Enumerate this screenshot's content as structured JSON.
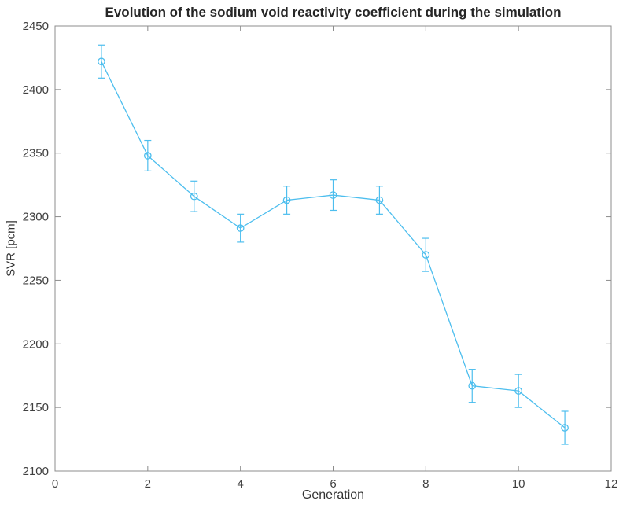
{
  "chart_data": {
    "type": "line",
    "title": "Evolution of the sodium void reactivity coefficient during the simulation",
    "xlabel": "Generation",
    "ylabel": "SVR [pcm]",
    "x": [
      1,
      2,
      3,
      4,
      5,
      6,
      7,
      8,
      9,
      10,
      11
    ],
    "y": [
      2422,
      2348,
      2316,
      2291,
      2313,
      2317,
      2313,
      2270,
      2167,
      2163,
      2134
    ],
    "yerr": [
      13,
      12,
      12,
      11,
      11,
      12,
      11,
      13,
      13,
      13,
      13
    ],
    "xlim": [
      0,
      12
    ],
    "ylim": [
      2100,
      2450
    ],
    "xticks": [
      0,
      2,
      4,
      6,
      8,
      10,
      12
    ],
    "yticks": [
      2100,
      2150,
      2200,
      2250,
      2300,
      2350,
      2400,
      2450
    ],
    "grid": false,
    "legend_position": "none",
    "marker": "circle-open",
    "line_color": "#4DBEEE",
    "axis_color": "#8c8c8c",
    "text_color": "#404040",
    "background_color": "#ffffff"
  }
}
